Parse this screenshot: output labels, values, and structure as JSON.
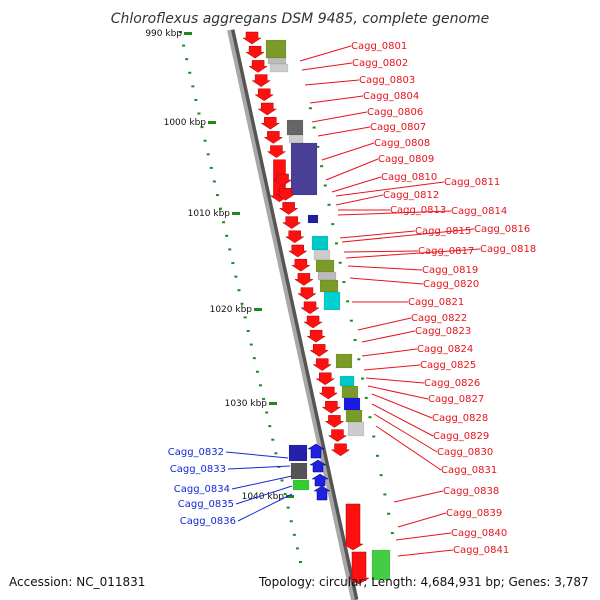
{
  "title": "Chloroflexus aggregans DSM 9485, complete genome",
  "accession": "Accession: NC_011831",
  "summary": "Topology: circular; Length: 4,684,931 bp; Genes: 3,787",
  "colors": {
    "forward_label": "#e8141c",
    "reverse_label": "#1428d6",
    "forward_gene": "#ff1010",
    "reverse_gene": "#2020e0",
    "backbone": "#9a9a9a",
    "tick": "#1e8a1e"
  },
  "scale_labels": [
    "990 kbp",
    "1000 kbp",
    "1010 kbp",
    "1020 kbp",
    "1030 kbp",
    "1040 kbp"
  ],
  "forward_genes": [
    "Cagg_0801",
    "Cagg_0802",
    "Cagg_0803",
    "Cagg_0804",
    "Cagg_0806",
    "Cagg_0807",
    "Cagg_0808",
    "Cagg_0809",
    "Cagg_0810",
    "Cagg_0811",
    "Cagg_0812",
    "Cagg_0813",
    "Cagg_0814",
    "Cagg_0815",
    "Cagg_0816",
    "Cagg_0817",
    "Cagg_0818",
    "Cagg_0819",
    "Cagg_0820",
    "Cagg_0821",
    "Cagg_0822",
    "Cagg_0823",
    "Cagg_0824",
    "Cagg_0825",
    "Cagg_0826",
    "Cagg_0827",
    "Cagg_0828",
    "Cagg_0829",
    "Cagg_0830",
    "Cagg_0831",
    "Cagg_0838",
    "Cagg_0839",
    "Cagg_0840",
    "Cagg_0841"
  ],
  "reverse_genes": [
    "Cagg_0832",
    "Cagg_0833",
    "Cagg_0834",
    "Cagg_0835",
    "Cagg_0836"
  ]
}
